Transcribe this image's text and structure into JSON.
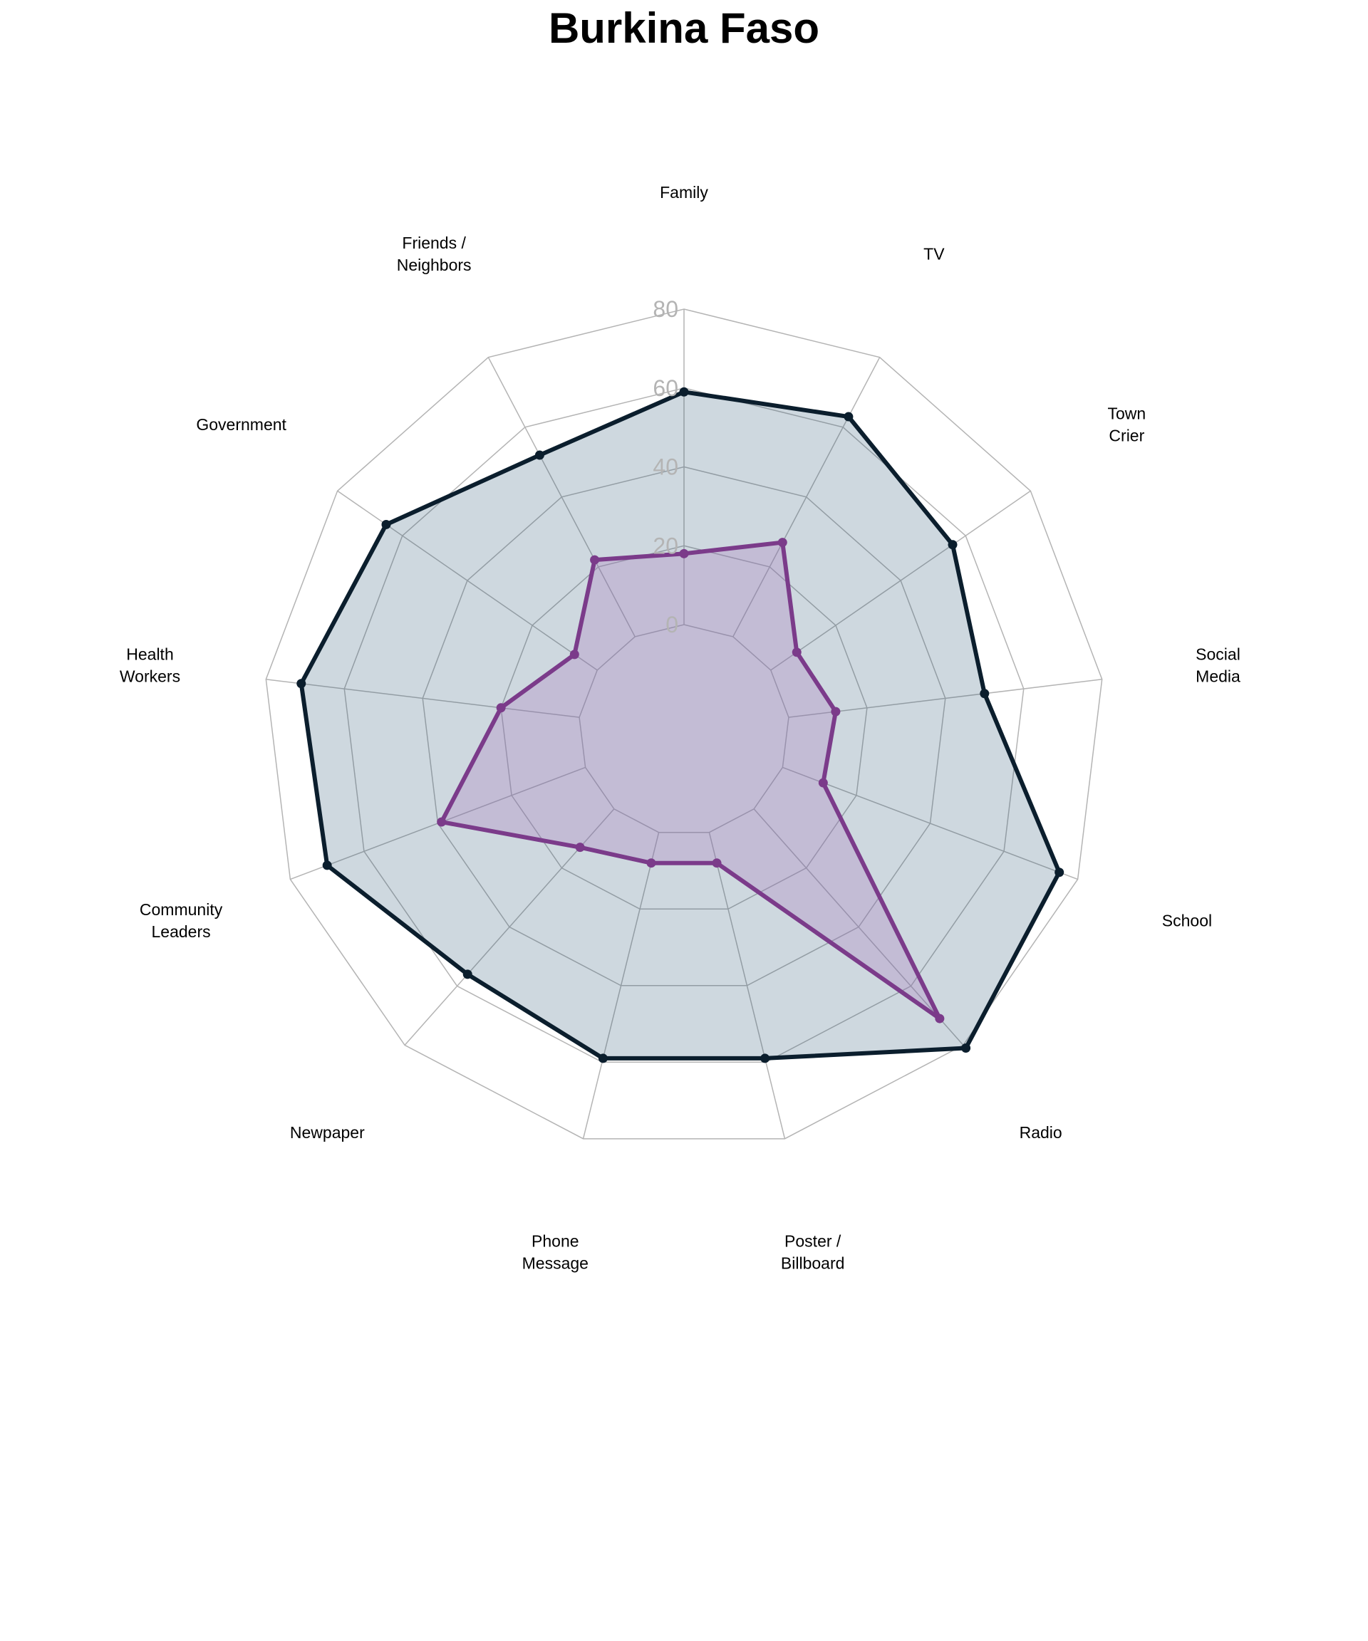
{
  "chart_data": {
    "type": "radar",
    "title": "Burkina Faso",
    "categories": [
      "Family",
      "TV",
      "Town\nCrier",
      "Social\nMedia",
      "School",
      "Radio",
      "Poster /\nBillboard",
      "Phone\nMessage",
      "Newpaper",
      "Community\nLeaders",
      "Health\nWorkers",
      "Government",
      "Friends /\nNeighbors"
    ],
    "rlim": [
      0,
      80
    ],
    "ticks": [
      0,
      20,
      40,
      60,
      80
    ],
    "grid": true,
    "series": [
      {
        "color": "#0b1e2d",
        "fill": "#1f4e6f",
        "fill_opacity": 0.22,
        "values": [
          59,
          63,
          56,
          50,
          75,
          81,
          59,
          59,
          56,
          70,
          71,
          65,
          52
        ]
      },
      {
        "color": "#7b3b8a",
        "fill": "#a97ac0",
        "fill_opacity": 0.3,
        "values": [
          18,
          27,
          8,
          12,
          11,
          71,
          8,
          8,
          13,
          39,
          20,
          7,
          22
        ]
      }
    ]
  }
}
